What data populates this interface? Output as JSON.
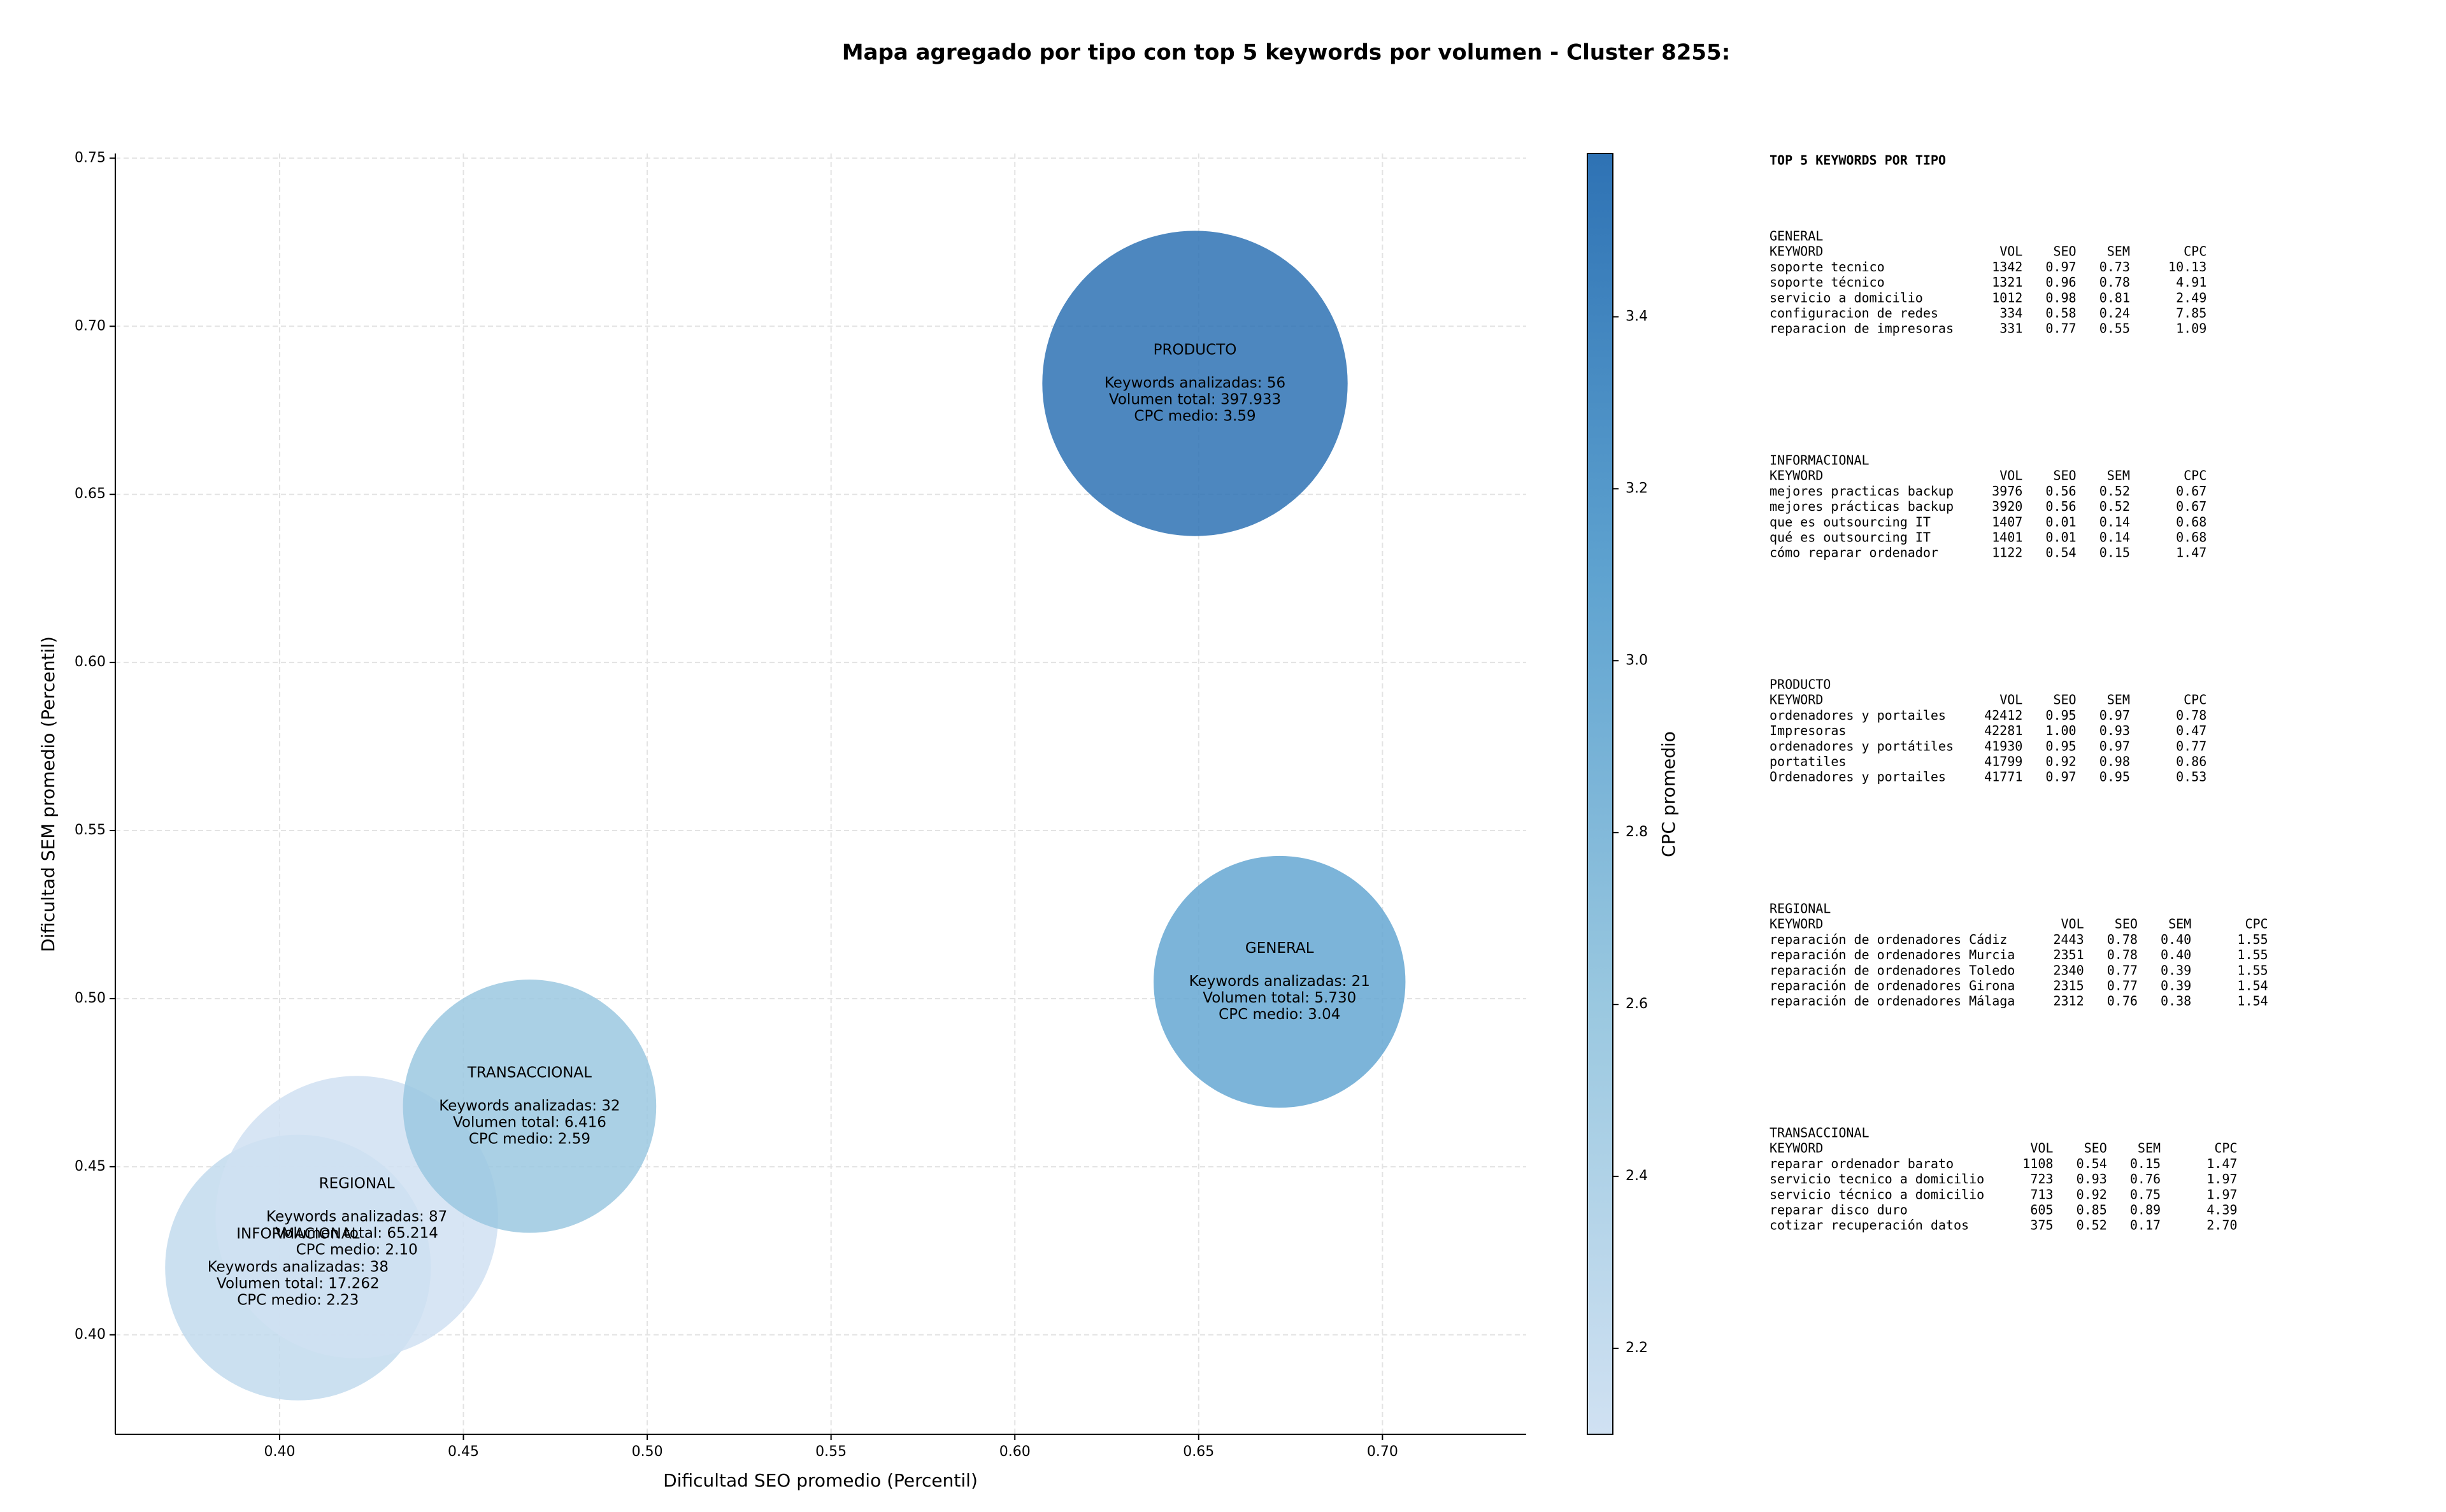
{
  "chart_data": {
    "type": "bubble",
    "title": "Mapa agregado por tipo con top 5 keywords por volumen - Cluster 8255:",
    "xlabel": "Dificultad SEO promedio (Percentil)",
    "ylabel": "Dificultad SEM promedio (Percentil)",
    "colorbar_label": "CPC promedio",
    "categories": [
      "GENERAL",
      "INFORMACIONAL",
      "PRODUCTO",
      "REGIONAL",
      "TRANSACCIONAL"
    ],
    "x": [
      0.672,
      0.405,
      0.649,
      0.421,
      0.468
    ],
    "values": [
      0.505,
      0.42,
      0.683,
      0.435,
      0.468
    ],
    "sizes": [
      5730,
      17262,
      397933,
      65214,
      6416
    ],
    "color_values": [
      3.04,
      2.23,
      3.59,
      2.1,
      2.59
    ],
    "details": [
      [
        "Keywords analizadas: 21",
        "Volumen total: 5.730",
        "CPC medio: 3.04"
      ],
      [
        "Keywords analizadas: 38",
        "Volumen total: 17.262",
        "CPC medio: 2.23"
      ],
      [
        "Keywords analizadas: 56",
        "Volumen total: 397.933",
        "CPC medio: 3.59"
      ],
      [
        "Keywords analizadas: 87",
        "Volumen total: 65.214",
        "CPC medio: 2.10"
      ],
      [
        "Keywords analizadas: 32",
        "Volumen total: 6.416",
        "CPC medio: 2.59"
      ]
    ],
    "colormap": [
      "#d0e1f2",
      "#9ac8e0",
      "#5fa3d0",
      "#2e72b4"
    ],
    "alpha": 0.85,
    "xlim": [
      0.3553,
      0.7391
    ],
    "ylim": [
      0.3704,
      0.7514
    ],
    "clim": [
      2.1,
      3.59
    ],
    "xticks": [
      {
        "value": 0.4,
        "label": "0.40"
      },
      0.45,
      {
        "value": 0.5,
        "label": "0.50"
      },
      0.55,
      {
        "value": 0.6,
        "label": "0.60"
      },
      0.65,
      {
        "value": 0.7,
        "label": "0.70"
      }
    ],
    "yticks": [
      {
        "value": 0.4,
        "label": "0.40"
      },
      0.45,
      {
        "value": 0.5,
        "label": "0.50"
      },
      0.55,
      {
        "value": 0.6,
        "label": "0.60"
      },
      0.65,
      {
        "value": 0.7,
        "label": "0.70"
      },
      0.75
    ],
    "cticks": [
      2.2,
      2.4,
      2.6,
      2.8,
      {
        "value": 3.0,
        "label": "3.0"
      },
      3.2,
      3.4
    ],
    "grid": true,
    "table_title": "TOP 5 KEYWORDS POR TIPO",
    "table_columns": [
      "KEYWORD",
      "VOL",
      "SEO",
      "SEM",
      "CPC"
    ],
    "keyword_tables": [
      [
        [
          "soporte tecnico",
          "1342",
          "0.97",
          "0.73",
          "10.13"
        ],
        [
          "soporte técnico",
          "1321",
          "0.96",
          "0.78",
          "4.91"
        ],
        [
          "servicio a domicilio",
          "1012",
          "0.98",
          "0.81",
          "2.49"
        ],
        [
          "configuracion de redes",
          "334",
          "0.58",
          "0.24",
          "7.85"
        ],
        [
          "reparacion de impresoras",
          "331",
          "0.77",
          "0.55",
          "1.09"
        ]
      ],
      [
        [
          "mejores practicas backup",
          "3976",
          "0.56",
          "0.52",
          "0.67"
        ],
        [
          "mejores prácticas backup",
          "3920",
          "0.56",
          "0.52",
          "0.67"
        ],
        [
          "que es outsourcing IT",
          "1407",
          "0.01",
          "0.14",
          "0.68"
        ],
        [
          "qué es outsourcing IT",
          "1401",
          "0.01",
          "0.14",
          "0.68"
        ],
        [
          "cómo reparar ordenador",
          "1122",
          "0.54",
          "0.15",
          "1.47"
        ]
      ],
      [
        [
          "ordenadores y portailes",
          "42412",
          "0.95",
          "0.97",
          "0.78"
        ],
        [
          "Impresoras",
          "42281",
          "1.00",
          "0.93",
          "0.47"
        ],
        [
          "ordenadores y portátiles",
          "41930",
          "0.95",
          "0.97",
          "0.77"
        ],
        [
          "portatiles",
          "41799",
          "0.92",
          "0.98",
          "0.86"
        ],
        [
          "Ordenadores y portailes",
          "41771",
          "0.97",
          "0.95",
          "0.53"
        ]
      ],
      [
        [
          "reparación de ordenadores Cádiz",
          "2443",
          "0.78",
          "0.40",
          "1.55"
        ],
        [
          "reparación de ordenadores Murcia",
          "2351",
          "0.78",
          "0.40",
          "1.55"
        ],
        [
          "reparación de ordenadores Toledo",
          "2340",
          "0.77",
          "0.39",
          "1.55"
        ],
        [
          "reparación de ordenadores Girona",
          "2315",
          "0.77",
          "0.39",
          "1.54"
        ],
        [
          "reparación de ordenadores Málaga",
          "2312",
          "0.76",
          "0.38",
          "1.54"
        ]
      ],
      [
        [
          "reparar ordenador barato",
          "1108",
          "0.54",
          "0.15",
          "1.47"
        ],
        [
          "servicio tecnico a domicilio",
          "723",
          "0.93",
          "0.76",
          "1.97"
        ],
        [
          "servicio técnico a domicilio",
          "713",
          "0.92",
          "0.75",
          "1.97"
        ],
        [
          "reparar disco duro",
          "605",
          "0.85",
          "0.89",
          "4.39"
        ],
        [
          "cotizar recuperación datos",
          "375",
          "0.52",
          "0.17",
          "2.70"
        ]
      ]
    ]
  }
}
